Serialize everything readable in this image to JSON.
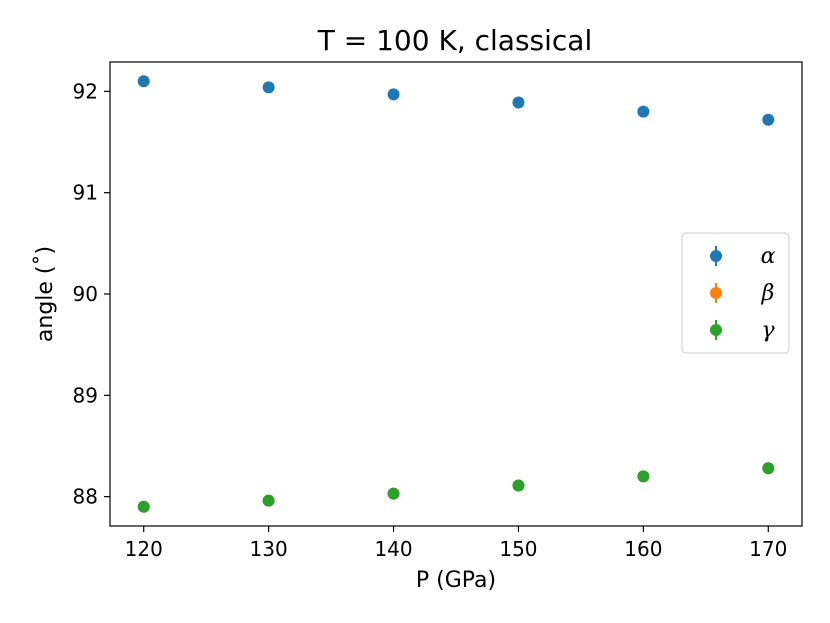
{
  "chart_data": {
    "type": "scatter",
    "title": "T = 100 K, classical",
    "xlabel": "P (GPa)",
    "ylabel": "angle ($^\\circ$)",
    "ylabel_display": "angle (˚)",
    "xlim": [
      117.3,
      172.7
    ],
    "ylim": [
      87.71,
      92.29
    ],
    "x_ticks": [
      120,
      130,
      140,
      150,
      160,
      170
    ],
    "y_ticks": [
      88,
      89,
      90,
      91,
      92
    ],
    "x": [
      120,
      130,
      140,
      150,
      160,
      170
    ],
    "series": [
      {
        "name": "α",
        "color": "#1f77b4",
        "values": [
          92.1,
          92.04,
          91.97,
          91.89,
          91.8,
          91.72
        ]
      },
      {
        "name": "β",
        "color": "#ff7f0e",
        "values": [
          87.9,
          87.96,
          88.03,
          88.11,
          88.2,
          88.28
        ]
      },
      {
        "name": "γ",
        "color": "#2ca02c",
        "values": [
          87.9,
          87.96,
          88.03,
          88.11,
          88.2,
          88.28
        ]
      }
    ],
    "legend_position": "center-right",
    "grid": false
  }
}
